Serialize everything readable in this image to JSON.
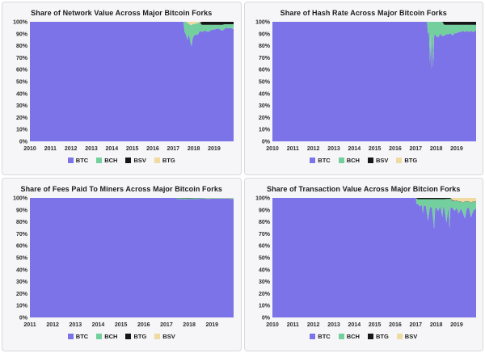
{
  "palette": {
    "btc": "#7c73e8",
    "bch": "#74cf9e",
    "dark": "#161616",
    "tan": "#efdaa2"
  },
  "chart_data": [
    {
      "id": "network-value",
      "title": "Share of Network Value Across Major Bitcoin Forks",
      "type": "area",
      "stacked": true,
      "unit": "%",
      "grid": false,
      "legend_position": "bottom",
      "xlim": [
        2010,
        2019.95
      ],
      "ylim": [
        0,
        100
      ],
      "xticks": [
        2010,
        2011,
        2012,
        2013,
        2014,
        2015,
        2016,
        2017,
        2018,
        2019
      ],
      "yticks": [
        0,
        10,
        20,
        30,
        40,
        50,
        60,
        70,
        80,
        90,
        100
      ],
      "x": [
        2010,
        2017.5,
        2017.55,
        2017.6,
        2017.65,
        2017.7,
        2017.75,
        2017.8,
        2017.85,
        2017.9,
        2017.95,
        2018.0,
        2018.1,
        2018.2,
        2018.3,
        2018.4,
        2018.5,
        2018.6,
        2018.7,
        2018.8,
        2018.9,
        2019.0,
        2019.1,
        2019.2,
        2019.3,
        2019.4,
        2019.5,
        2019.6,
        2019.7,
        2019.8,
        2019.9,
        2019.95
      ],
      "series": [
        {
          "name": "BTC",
          "color": "#7c73e8",
          "values": [
            100,
            100,
            92,
            90,
            88,
            85,
            89.5,
            87,
            82,
            79.5,
            86,
            88,
            89.5,
            89,
            92.5,
            91.5,
            92.5,
            92.5,
            91.5,
            92.5,
            93.5,
            93.5,
            94,
            94.5,
            93.5,
            92.5,
            94,
            95,
            94.5,
            95,
            94,
            94
          ]
        },
        {
          "name": "BCH",
          "color": "#74cf9e",
          "values": [
            0,
            0,
            8,
            10,
            12,
            14,
            9,
            11,
            15,
            18,
            12,
            10,
            9,
            10,
            7,
            6,
            5,
            5,
            6,
            5,
            4,
            4,
            3.5,
            3,
            4,
            5,
            4,
            3,
            3.5,
            3,
            4,
            4
          ]
        },
        {
          "name": "BSV",
          "color": "#161616",
          "values": [
            0,
            0,
            0,
            0,
            0,
            0,
            0,
            0,
            0,
            0,
            0,
            0,
            0,
            0,
            0,
            2.5,
            2.5,
            2.5,
            2.5,
            2.5,
            2.5,
            2.5,
            2.5,
            2.5,
            2.5,
            2.5,
            2,
            2,
            2,
            2,
            2,
            2
          ]
        },
        {
          "name": "BTG",
          "color": "#efdaa2",
          "values": [
            0,
            0,
            0,
            0,
            0,
            1,
            1.5,
            2,
            3,
            2.5,
            2,
            2,
            1.5,
            1,
            0.5,
            0,
            0,
            0,
            0,
            0,
            0,
            0,
            0,
            0,
            0,
            0,
            0,
            0,
            0,
            0,
            0,
            0
          ]
        }
      ]
    },
    {
      "id": "hash-rate",
      "title": "Share of Hash Rate Across Major Bitcoin Forks",
      "type": "area",
      "stacked": true,
      "unit": "%",
      "grid": false,
      "legend_position": "bottom",
      "xlim": [
        2010,
        2019.95
      ],
      "ylim": [
        0,
        100
      ],
      "xticks": [
        2010,
        2011,
        2012,
        2013,
        2014,
        2015,
        2016,
        2017,
        2018,
        2019
      ],
      "yticks": [
        0,
        10,
        20,
        30,
        40,
        50,
        60,
        70,
        80,
        90,
        100
      ],
      "x": [
        2010,
        2017.55,
        2017.6,
        2017.65,
        2017.7,
        2017.72,
        2017.75,
        2017.78,
        2017.8,
        2017.85,
        2017.9,
        2017.95,
        2018.0,
        2018.1,
        2018.2,
        2018.3,
        2018.4,
        2018.5,
        2018.6,
        2018.7,
        2018.8,
        2018.9,
        2019.0,
        2019.1,
        2019.2,
        2019.3,
        2019.4,
        2019.5,
        2019.6,
        2019.7,
        2019.8,
        2019.9,
        2019.95
      ],
      "series": [
        {
          "name": "BTC",
          "color": "#7c73e8",
          "values": [
            100,
            100,
            90,
            92,
            65,
            88,
            60,
            90,
            86,
            62,
            88,
            90,
            88,
            87,
            90,
            88,
            88.5,
            89.5,
            89.5,
            90.5,
            88.5,
            90.5,
            90.5,
            91.5,
            91.5,
            92.5,
            91.5,
            92.5,
            91.5,
            92.5,
            91.5,
            92.5,
            92.5
          ]
        },
        {
          "name": "BCH",
          "color": "#74cf9e",
          "values": [
            0,
            0,
            10,
            8,
            35,
            12,
            40,
            10,
            14,
            38,
            12,
            10,
            12,
            13,
            10,
            12,
            9,
            8,
            8,
            7,
            9,
            7,
            7,
            6,
            6,
            5,
            6,
            5,
            6,
            5,
            6,
            5,
            5
          ]
        },
        {
          "name": "BSV",
          "color": "#161616",
          "values": [
            0,
            0,
            0,
            0,
            0,
            0,
            0,
            0,
            0,
            0,
            0,
            0,
            0,
            0,
            0,
            0,
            2.5,
            2.5,
            2.5,
            2.5,
            2.5,
            2.5,
            2.5,
            2.5,
            2.5,
            2.5,
            2.5,
            2.5,
            2.5,
            2.5,
            2.5,
            2.5,
            2.5
          ]
        },
        {
          "name": "BTG",
          "color": "#efdaa2",
          "values": [
            0,
            0,
            0,
            0,
            0,
            0,
            0,
            0,
            0,
            0,
            0,
            0,
            0,
            0,
            0,
            0,
            0,
            0,
            0,
            0,
            0,
            0,
            0,
            0,
            0,
            0,
            0,
            0,
            0,
            0,
            0,
            0,
            0
          ]
        }
      ]
    },
    {
      "id": "fees-paid-to-miners",
      "title": "Share of Fees Paid To Miners Across Major Bitcoin Forks",
      "type": "area",
      "stacked": true,
      "unit": "%",
      "grid": false,
      "legend_position": "bottom",
      "xlim": [
        2011,
        2019.95
      ],
      "ylim": [
        0,
        100
      ],
      "xticks": [
        2011,
        2012,
        2013,
        2014,
        2015,
        2016,
        2017,
        2018,
        2019
      ],
      "yticks": [
        0,
        10,
        20,
        30,
        40,
        50,
        60,
        70,
        80,
        90,
        100
      ],
      "x": [
        2011,
        2017.4,
        2017.5,
        2017.6,
        2017.8,
        2018.0,
        2018.2,
        2018.4,
        2018.6,
        2018.8,
        2019.0,
        2019.3,
        2019.6,
        2019.9,
        2019.95
      ],
      "series": [
        {
          "name": "BTC",
          "color": "#7c73e8",
          "values": [
            100,
            100,
            98.9,
            99.2,
            98.9,
            99,
            99,
            99.2,
            99.4,
            99.2,
            99.3,
            99.3,
            99.4,
            99.2,
            99.2
          ]
        },
        {
          "name": "BCH",
          "color": "#74cf9e",
          "values": [
            0,
            0,
            0.8,
            0.6,
            0.8,
            0.7,
            0.8,
            0.6,
            0.5,
            0.5,
            0.4,
            0.4,
            0.3,
            0.5,
            0.5
          ]
        },
        {
          "name": "BTG",
          "color": "#161616",
          "values": [
            0,
            0,
            0.3,
            0.2,
            0.3,
            0.3,
            0.2,
            0.2,
            0.1,
            0.1,
            0.1,
            0.1,
            0.1,
            0.1,
            0.1
          ]
        },
        {
          "name": "BSV",
          "color": "#efdaa2",
          "values": [
            0,
            0,
            0,
            0,
            0,
            0,
            0,
            0,
            0,
            0.2,
            0.2,
            0.2,
            0.2,
            0.2,
            0.2
          ]
        }
      ]
    },
    {
      "id": "transaction-value",
      "title": "Share of Transaction Value Across Major Bitcion Forks",
      "type": "area",
      "stacked": true,
      "unit": "%",
      "grid": false,
      "legend_position": "bottom",
      "xlim": [
        2010,
        2019.95
      ],
      "ylim": [
        0,
        100
      ],
      "xticks": [
        2010,
        2011,
        2012,
        2013,
        2014,
        2015,
        2016,
        2017,
        2018,
        2019
      ],
      "yticks": [
        0,
        10,
        20,
        30,
        40,
        50,
        60,
        70,
        80,
        90,
        100
      ],
      "x": [
        2010,
        2017.0,
        2017.05,
        2017.1,
        2017.2,
        2017.3,
        2017.35,
        2017.4,
        2017.5,
        2017.6,
        2017.7,
        2017.8,
        2017.9,
        2017.95,
        2018.0,
        2018.1,
        2018.2,
        2018.3,
        2018.35,
        2018.4,
        2018.5,
        2018.6,
        2018.65,
        2018.7,
        2018.8,
        2018.9,
        2019.0,
        2019.1,
        2019.2,
        2019.3,
        2019.4,
        2019.5,
        2019.6,
        2019.7,
        2019.8,
        2019.9,
        2019.95
      ],
      "series": [
        {
          "name": "BTC",
          "color": "#7c73e8",
          "values": [
            100,
            100,
            94.5,
            95,
            93,
            94,
            87,
            94,
            93,
            81,
            93,
            91,
            74,
            91,
            92,
            89,
            93,
            84,
            93,
            91,
            79.2,
            92.2,
            74.2,
            92.5,
            91.5,
            89.2,
            91.7,
            86.8,
            91.3,
            87.8,
            82.8,
            91.3,
            91.8,
            83.8,
            88.8,
            90.8,
            90.8
          ]
        },
        {
          "name": "BCH",
          "color": "#74cf9e",
          "values": [
            0,
            0,
            5,
            4,
            6,
            5,
            12,
            5,
            6,
            18,
            6,
            8,
            25,
            8,
            7,
            10,
            6,
            15,
            6,
            8,
            20,
            7,
            25,
            7,
            6,
            8,
            6,
            10,
            6,
            8,
            14,
            6,
            5,
            12,
            8,
            6,
            6
          ]
        },
        {
          "name": "BTG",
          "color": "#161616",
          "values": [
            0,
            0,
            0.5,
            1,
            1,
            1,
            1,
            1,
            1,
            1,
            1,
            1,
            1,
            1,
            1,
            1,
            1,
            1,
            1,
            1,
            0.8,
            0.8,
            0.8,
            0.5,
            0.5,
            0.3,
            0.3,
            0.2,
            0.2,
            0.2,
            0.2,
            0.2,
            0.2,
            0.2,
            0.2,
            0.2,
            0.2
          ]
        },
        {
          "name": "BSV",
          "color": "#efdaa2",
          "values": [
            0,
            0,
            0,
            0,
            0,
            0,
            0,
            0,
            0,
            0,
            0,
            0,
            0,
            0,
            0,
            0,
            0,
            0,
            0,
            0,
            0,
            0,
            0,
            0,
            2,
            2.5,
            2,
            3,
            2.5,
            4,
            3,
            2.5,
            3,
            4,
            3,
            3,
            3
          ]
        }
      ]
    }
  ]
}
